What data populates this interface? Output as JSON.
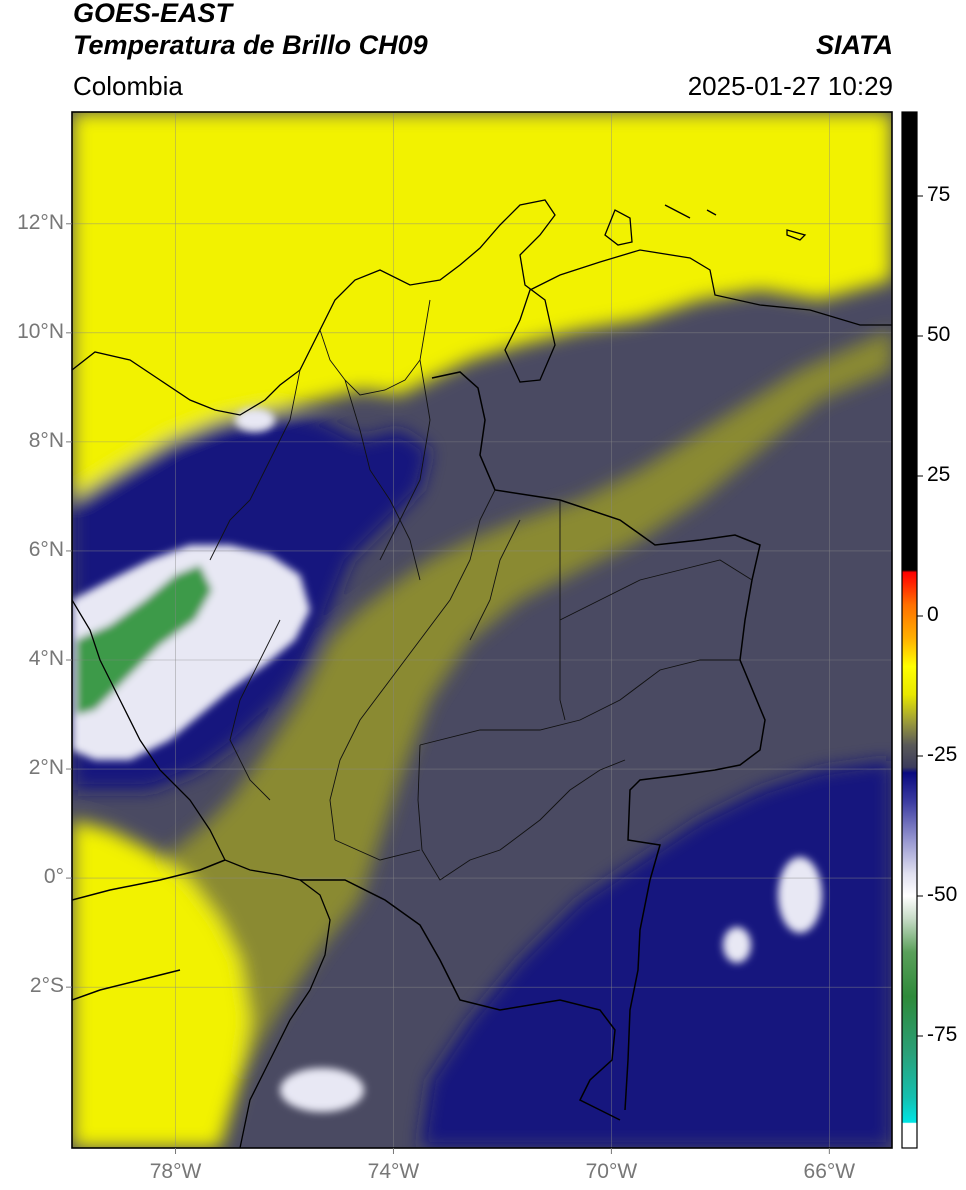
{
  "header": {
    "satellite": "GOES-EAST",
    "product": "Temperatura de Brillo CH09",
    "region": "Colombia",
    "agency": "SIATA",
    "datetime": "2025-01-27 10:29"
  },
  "map": {
    "lat_range": [
      -4.95,
      14.05
    ],
    "lon_range": [
      -79.9,
      -64.85
    ],
    "lat_ticks": [
      {
        "value": 12,
        "label": "12°N"
      },
      {
        "value": 10,
        "label": "10°N"
      },
      {
        "value": 8,
        "label": "8°N"
      },
      {
        "value": 6,
        "label": "6°N"
      },
      {
        "value": 4,
        "label": "4°N"
      },
      {
        "value": 2,
        "label": "2°N"
      },
      {
        "value": 0,
        "label": "0°"
      },
      {
        "value": -2,
        "label": "2°S"
      }
    ],
    "lon_ticks": [
      {
        "value": -78,
        "label": "78°W"
      },
      {
        "value": -74,
        "label": "74°W"
      },
      {
        "value": -70,
        "label": "70°W"
      },
      {
        "value": -66,
        "label": "66°W"
      }
    ],
    "grid": true,
    "colors": {
      "yellow_band": "#f2f200",
      "orange_band": "#ffb000",
      "olive_band": "#8a8a30",
      "slate_band": "#4a4a62",
      "navy_band": "#14147e",
      "white_band": "#e8e8f4",
      "green_band": "#3c9a48"
    }
  },
  "colorbar": {
    "range": [
      -95,
      90
    ],
    "ticks": [
      {
        "value": 75,
        "label": "75"
      },
      {
        "value": 50,
        "label": "50"
      },
      {
        "value": 25,
        "label": "25"
      },
      {
        "value": 0,
        "label": "0"
      },
      {
        "value": -25,
        "label": "-25"
      },
      {
        "value": -50,
        "label": "-50"
      },
      {
        "value": -75,
        "label": "-75"
      }
    ],
    "stops": [
      {
        "v": -95,
        "c": "#ffffff"
      },
      {
        "v": -90.6,
        "c": "#ffffff"
      },
      {
        "v": -90.4,
        "c": "#00e4e4"
      },
      {
        "v": -86,
        "c": "#14c0b0"
      },
      {
        "v": -78,
        "c": "#2aa078"
      },
      {
        "v": -68,
        "c": "#2e8a3a"
      },
      {
        "v": -60,
        "c": "#5aa05a"
      },
      {
        "v": -54,
        "c": "#c8dcc8"
      },
      {
        "v": -50,
        "c": "#ffffff"
      },
      {
        "v": -46,
        "c": "#e0e0f0"
      },
      {
        "v": -40,
        "c": "#9696d0"
      },
      {
        "v": -33,
        "c": "#3a3aa0"
      },
      {
        "v": -28,
        "c": "#0a0a80"
      },
      {
        "v": -27,
        "c": "#3c3c5c"
      },
      {
        "v": -23,
        "c": "#5a5a58"
      },
      {
        "v": -19,
        "c": "#9a9a3a"
      },
      {
        "v": -14,
        "c": "#e8e800"
      },
      {
        "v": -9,
        "c": "#ffff00"
      },
      {
        "v": -4,
        "c": "#ffb000"
      },
      {
        "v": 2,
        "c": "#ff7000"
      },
      {
        "v": 6,
        "c": "#ff2000"
      },
      {
        "v": 7.8,
        "c": "#ff0000"
      },
      {
        "v": 8.2,
        "c": "#000000"
      },
      {
        "v": 90,
        "c": "#000000"
      }
    ]
  }
}
